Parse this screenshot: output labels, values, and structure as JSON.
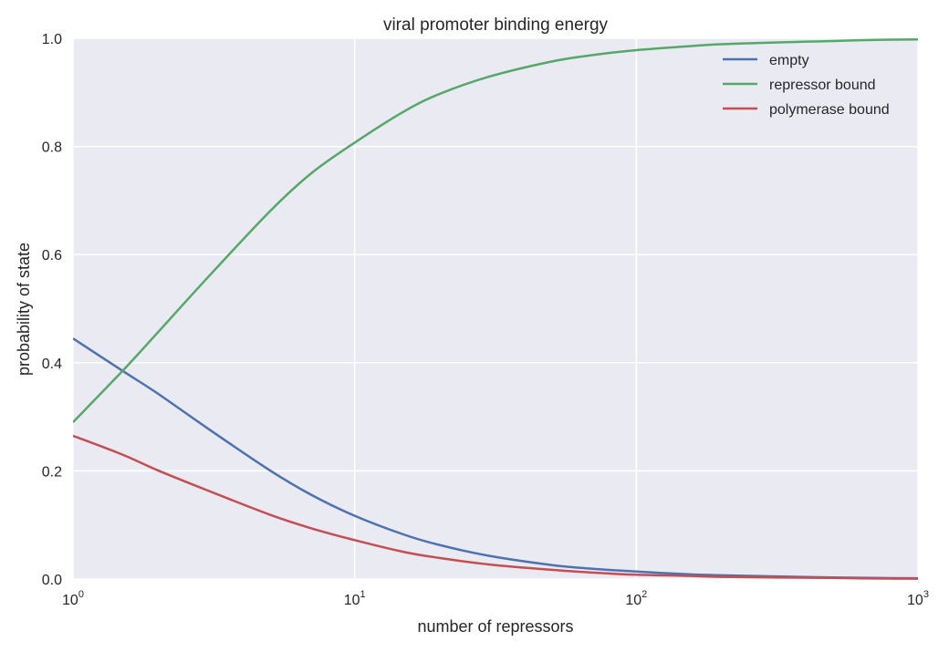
{
  "chart_data": {
    "type": "line",
    "title": "viral promoter binding energy",
    "xlabel": "number of repressors",
    "ylabel": "probability of state",
    "xscale": "log",
    "xlim": [
      1,
      1000
    ],
    "ylim": [
      0,
      1.0
    ],
    "grid": true,
    "legend_position": "top-right",
    "x_ticks": [
      {
        "value": 1,
        "base": "10",
        "exp": "0"
      },
      {
        "value": 10,
        "base": "10",
        "exp": "1"
      },
      {
        "value": 100,
        "base": "10",
        "exp": "2"
      },
      {
        "value": 1000,
        "base": "10",
        "exp": "3"
      }
    ],
    "y_ticks": [
      {
        "value": 0.0,
        "label": "0.0"
      },
      {
        "value": 0.2,
        "label": "0.2"
      },
      {
        "value": 0.4,
        "label": "0.4"
      },
      {
        "value": 0.6,
        "label": "0.6"
      },
      {
        "value": 0.8,
        "label": "0.8"
      },
      {
        "value": 1.0,
        "label": "1.0"
      }
    ],
    "x": [
      1,
      1.5,
      2,
      3,
      5,
      7,
      10,
      15,
      20,
      30,
      50,
      70,
      100,
      150,
      200,
      300,
      500,
      700,
      1000
    ],
    "series": [
      {
        "name": "empty",
        "color": "#4c72b0",
        "values": [
          0.445,
          0.385,
          0.343,
          0.279,
          0.201,
          0.156,
          0.117,
          0.082,
          0.063,
          0.043,
          0.026,
          0.019,
          0.014,
          0.009,
          0.007,
          0.005,
          0.003,
          0.002,
          0.0015
        ]
      },
      {
        "name": "repressor bound",
        "color": "#55a868",
        "values": [
          0.29,
          0.385,
          0.456,
          0.557,
          0.68,
          0.75,
          0.807,
          0.865,
          0.897,
          0.929,
          0.957,
          0.969,
          0.978,
          0.985,
          0.989,
          0.992,
          0.995,
          0.997,
          0.998
        ]
      },
      {
        "name": "polymerase bound",
        "color": "#c44e52",
        "values": [
          0.265,
          0.23,
          0.201,
          0.164,
          0.119,
          0.094,
          0.072,
          0.05,
          0.039,
          0.027,
          0.017,
          0.012,
          0.008,
          0.006,
          0.004,
          0.003,
          0.002,
          0.001,
          0.0007
        ]
      }
    ]
  }
}
